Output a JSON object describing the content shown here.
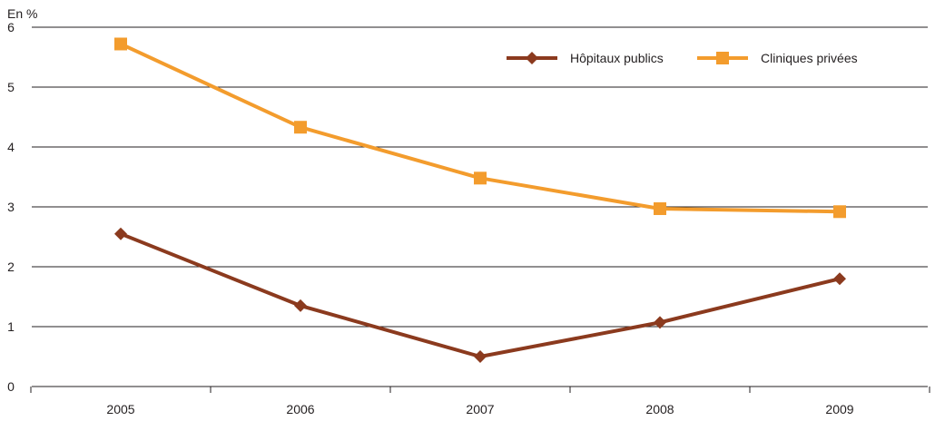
{
  "chart_data": {
    "type": "line",
    "unit_label": "En %",
    "categories": [
      "2005",
      "2006",
      "2007",
      "2008",
      "2009"
    ],
    "y_ticks": [
      "0",
      "1",
      "2",
      "3",
      "4",
      "5",
      "6"
    ],
    "ylim": [
      0,
      6
    ],
    "grid": "horizontal",
    "legend_position": "top-right",
    "series": [
      {
        "name": "Hôpitaux publics",
        "values": [
          2.55,
          1.35,
          0.5,
          1.07,
          1.8
        ],
        "color": "#8b3a1e",
        "marker": "diamond"
      },
      {
        "name": "Cliniques privées",
        "values": [
          5.72,
          4.33,
          3.48,
          2.97,
          2.92
        ],
        "color": "#f39c2d",
        "marker": "square"
      }
    ]
  }
}
